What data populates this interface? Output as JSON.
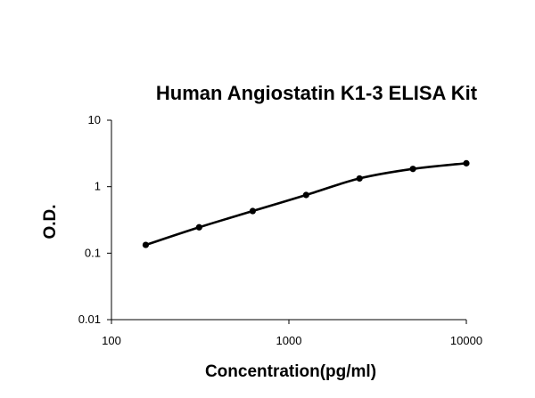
{
  "chart_data": {
    "type": "scatter",
    "title": "Human Angiostatin K1-3 ELISA Kit",
    "xlabel": "Concentration(pg/ml)",
    "ylabel": "O.D.",
    "xscale": "log",
    "yscale": "log",
    "xlim": [
      100,
      10000
    ],
    "ylim": [
      0.01,
      10
    ],
    "x_ticks": [
      100,
      1000,
      10000
    ],
    "x_tick_labels": [
      "100",
      "1000",
      "10000"
    ],
    "y_ticks": [
      0.01,
      0.1,
      1,
      10
    ],
    "y_tick_labels": [
      "0.01",
      "0.1",
      "1",
      "10"
    ],
    "grid": false,
    "legend": "none",
    "trendline": "smooth",
    "series": [
      {
        "x": [
          156,
          312,
          625,
          1250,
          2500,
          5000,
          10000
        ],
        "y": [
          0.133,
          0.245,
          0.43,
          0.75,
          1.33,
          1.85,
          2.25
        ]
      }
    ],
    "colors": {
      "line": "#000000",
      "marker": "#000000",
      "background": "#ffffff"
    }
  }
}
